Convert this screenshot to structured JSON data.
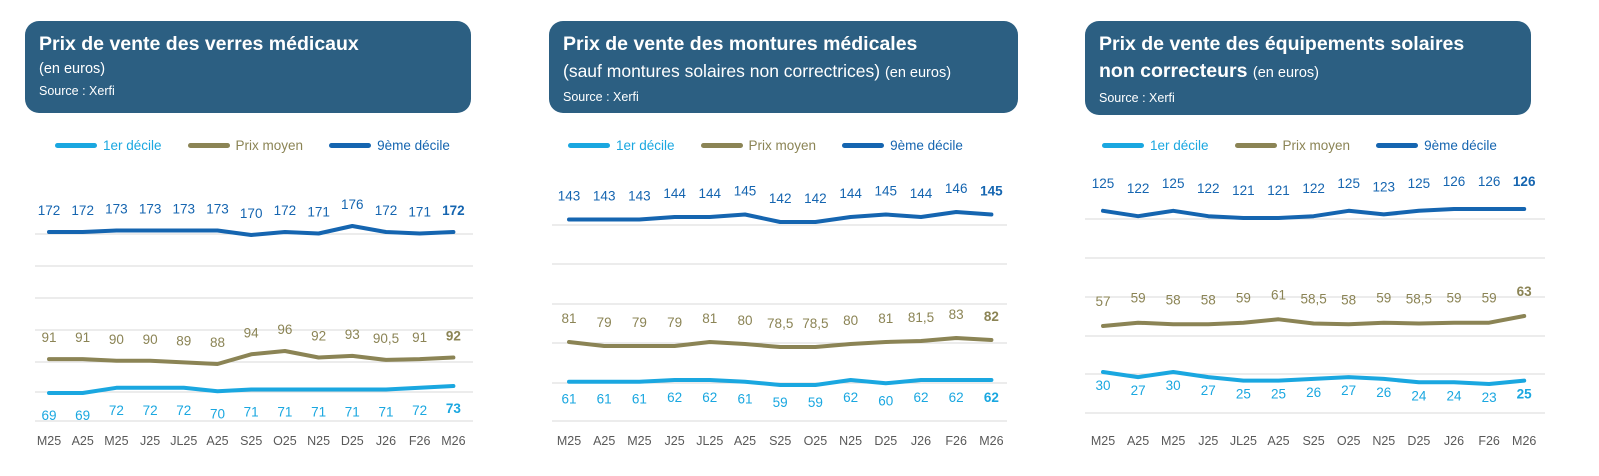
{
  "colors": {
    "header_bg": "#2c5f82",
    "decile1": "#1aa7e0",
    "mean": "#8b8455",
    "decile9": "#1565b0",
    "grid": "#d9d9d9"
  },
  "legend": {
    "d1": "1er décile",
    "mean": "Prix moyen",
    "d9": "9ème décile"
  },
  "panels": [
    {
      "title": "Prix de vente des verres médicaux",
      "title_paren": "",
      "line2": "(en euros)",
      "line2_paren": "",
      "source": "Source : Xerfi"
    },
    {
      "title": "Prix de vente des montures médicales",
      "title_paren": "",
      "line2": "(sauf montures solaires non correctrices)",
      "line2_paren": "(en euros)",
      "source": "Source : Xerfi"
    },
    {
      "title": "Prix de vente des équipements solaires",
      "title_paren": "",
      "line2": "non correcteurs",
      "line2_paren": "(en euros)",
      "source": "Source : Xerfi"
    }
  ],
  "chart_data": [
    {
      "type": "line",
      "title": "Prix de vente des verres médicaux (en euros)",
      "categories": [
        "M25",
        "A25",
        "M25",
        "J25",
        "JL25",
        "A25",
        "S25",
        "O25",
        "N25",
        "D25",
        "J26",
        "F26",
        "M26"
      ],
      "series": [
        {
          "name": "1er décile",
          "values": [
            69,
            69,
            72,
            72,
            72,
            70,
            71,
            71,
            71,
            71,
            71,
            72,
            73
          ]
        },
        {
          "name": "Prix moyen",
          "values": [
            91,
            91,
            90,
            90,
            89,
            88,
            94,
            96,
            92,
            93,
            90.5,
            91,
            92
          ]
        },
        {
          "name": "9ème décile",
          "values": [
            172,
            172,
            173,
            173,
            173,
            173,
            170,
            172,
            171,
            176,
            172,
            171,
            172
          ]
        }
      ],
      "grid": true
    },
    {
      "type": "line",
      "title": "Prix de vente des montures médicales (sauf montures solaires non correctrices) (en euros)",
      "categories": [
        "M25",
        "A25",
        "M25",
        "J25",
        "JL25",
        "A25",
        "S25",
        "O25",
        "N25",
        "D25",
        "J26",
        "F26",
        "M26"
      ],
      "series": [
        {
          "name": "1er décile",
          "values": [
            61,
            61,
            61,
            62,
            62,
            61,
            59,
            59,
            62,
            60,
            62,
            62,
            62
          ]
        },
        {
          "name": "Prix moyen",
          "values": [
            81,
            79,
            79,
            79,
            81,
            80,
            78.5,
            78.5,
            80,
            81,
            81.5,
            83,
            82
          ]
        },
        {
          "name": "9ème décile",
          "values": [
            143,
            143,
            143,
            144,
            144,
            145,
            142,
            142,
            144,
            145,
            144,
            146,
            145
          ]
        }
      ],
      "grid": true
    },
    {
      "type": "line",
      "title": "Prix de vente des équipements solaires non correcteurs (en euros)",
      "categories": [
        "M25",
        "A25",
        "M25",
        "J25",
        "JL25",
        "A25",
        "S25",
        "O25",
        "N25",
        "D25",
        "J26",
        "F26",
        "M26"
      ],
      "series": [
        {
          "name": "1er décile",
          "values": [
            30,
            27,
            30,
            27,
            25,
            25,
            26,
            27,
            26,
            24,
            24,
            23,
            25
          ]
        },
        {
          "name": "Prix moyen",
          "values": [
            57,
            59,
            58,
            58,
            59,
            61,
            58.5,
            58,
            59,
            58.5,
            59,
            59,
            63
          ]
        },
        {
          "name": "9ème décile",
          "values": [
            125,
            122,
            125,
            122,
            121,
            121,
            122,
            125,
            123,
            125,
            126,
            126,
            126
          ]
        }
      ],
      "grid": true
    }
  ]
}
